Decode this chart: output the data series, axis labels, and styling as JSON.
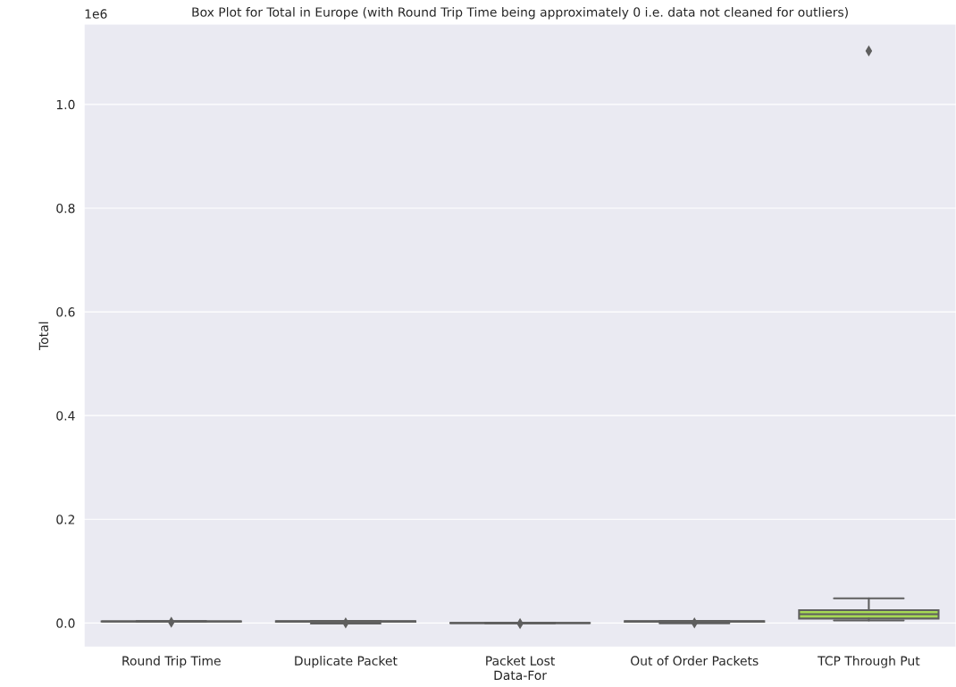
{
  "chart_data": {
    "type": "box",
    "title": "Box Plot for Total in Europe (with Round Trip Time being approximately 0 i.e. data not cleaned for outliers)",
    "xlabel": "Data-For",
    "ylabel": "Total",
    "categories": [
      "Round Trip Time",
      "Duplicate Packet",
      "Packet Lost",
      "Out of Order Packets",
      "TCP Through Put"
    ],
    "colors": [
      "#66c2a5",
      "#fc8d62",
      "#8da0cb",
      "#e78ac3",
      "#a6d854"
    ],
    "boxes": [
      {
        "low": 0.0025,
        "q1": 0.0028,
        "median": 0.003,
        "q3": 0.0032,
        "high": 0.0035,
        "outliers": [
          0.0015
        ]
      },
      {
        "low": -0.001,
        "q1": 0.0025,
        "median": 0.003,
        "q3": 0.0035,
        "high": 0.004,
        "outliers": [
          0.0
        ]
      },
      {
        "low": -0.0005,
        "q1": -0.0003,
        "median": 0.0,
        "q3": 0.0003,
        "high": 0.0005,
        "outliers": [
          -0.001
        ]
      },
      {
        "low": -0.0005,
        "q1": 0.0025,
        "median": 0.003,
        "q3": 0.0035,
        "high": 0.004,
        "outliers": [
          0.0
        ]
      },
      {
        "low": 0.005,
        "q1": 0.0086,
        "median": 0.017,
        "q3": 0.0247,
        "high": 0.0476,
        "outliers": [
          1.103
        ]
      }
    ],
    "ylim": [
      -0.0466,
      1.155
    ],
    "yticks": [
      {
        "value": 0,
        "label": "0.0"
      },
      0.2,
      0.4,
      0.6,
      0.8,
      {
        "value": 1,
        "label": "1.0"
      }
    ],
    "annotations": [
      "1e6"
    ],
    "grid": "y"
  }
}
